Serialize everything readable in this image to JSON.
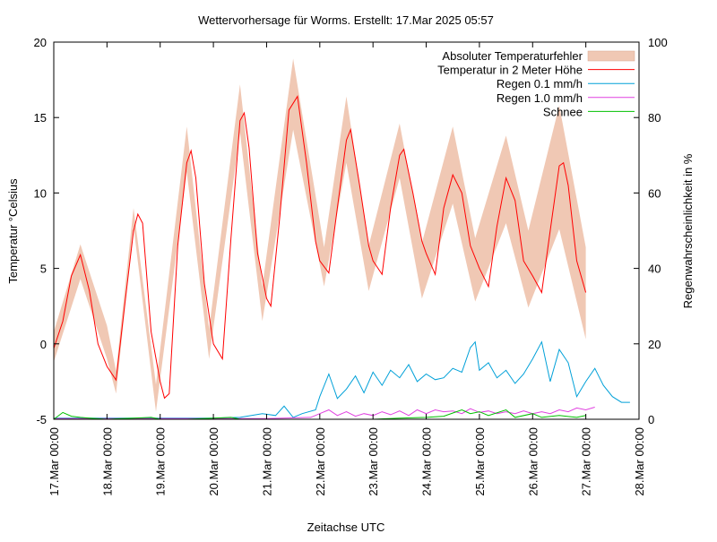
{
  "chart_data": {
    "type": "line",
    "title": "Wettervorhersage für Worms. Erstellt: 17.Mar 2025 05:57",
    "xlabel": "Zeitachse UTC",
    "ylabel": "Temperatur °Celsius",
    "y2label": "Regenwahrscheinlichkeit in %",
    "xlim_days": [
      0,
      11
    ],
    "ylim": [
      -5,
      20
    ],
    "y2lim": [
      0,
      100
    ],
    "y_ticks": [
      "-5",
      "0",
      "5",
      "10",
      "15",
      "20"
    ],
    "y2_ticks": [
      "0",
      "20",
      "40",
      "60",
      "80",
      "100"
    ],
    "x_ticks": [
      "17.Mar 00:00",
      "18.Mar 00:00",
      "19.Mar 00:00",
      "20.Mar 00:00",
      "21.Mar 00:00",
      "22.Mar 00:00",
      "23.Mar 00:00",
      "24.Mar 00:00",
      "25.Mar 00:00",
      "26.Mar 00:00",
      "27.Mar 00:00",
      "28.Mar 00:00"
    ],
    "legend_position": "top-right",
    "grid": false,
    "series": [
      {
        "name": "Absoluter Temperaturfehler",
        "type": "band",
        "axis": "left",
        "color": "#f0c8b4",
        "values": [
          [
            0.0,
            -1.2,
            0.8
          ],
          [
            0.5,
            4.3,
            6.6
          ],
          [
            1.0,
            -1.0,
            1.2
          ],
          [
            1.17,
            -3.3,
            -1.8
          ],
          [
            1.5,
            7.8,
            9.0
          ],
          [
            1.92,
            -4.5,
            -2.7
          ],
          [
            2.5,
            11.4,
            14.4
          ],
          [
            2.92,
            -1.0,
            1.0
          ],
          [
            3.5,
            14.0,
            17.2
          ],
          [
            3.92,
            1.5,
            3.8
          ],
          [
            4.5,
            14.2,
            18.9
          ],
          [
            5.08,
            3.8,
            6.4
          ],
          [
            5.5,
            12.0,
            16.4
          ],
          [
            5.92,
            3.5,
            6.5
          ],
          [
            6.5,
            11.0,
            14.6
          ],
          [
            6.92,
            3.0,
            6.7
          ],
          [
            7.5,
            9.3,
            14.4
          ],
          [
            7.92,
            2.8,
            7.0
          ],
          [
            8.5,
            8.0,
            13.8
          ],
          [
            8.92,
            2.4,
            7.5
          ],
          [
            9.5,
            7.6,
            15.8
          ],
          [
            10.0,
            0.3,
            6.4
          ]
        ]
      },
      {
        "name": "Temperatur in 2 Meter Höhe",
        "type": "line",
        "axis": "left",
        "color": "#ff0000",
        "values": [
          [
            0.0,
            -0.3
          ],
          [
            0.17,
            1.5
          ],
          [
            0.33,
            4.5
          ],
          [
            0.5,
            5.9
          ],
          [
            0.67,
            3.5
          ],
          [
            0.83,
            0.0
          ],
          [
            1.0,
            -1.5
          ],
          [
            1.17,
            -2.4
          ],
          [
            1.33,
            2.5
          ],
          [
            1.5,
            7.5
          ],
          [
            1.58,
            8.6
          ],
          [
            1.67,
            8.0
          ],
          [
            1.83,
            0.8
          ],
          [
            2.0,
            -2.5
          ],
          [
            2.08,
            -3.6
          ],
          [
            2.17,
            -3.3
          ],
          [
            2.33,
            6.5
          ],
          [
            2.5,
            12.0
          ],
          [
            2.58,
            12.8
          ],
          [
            2.67,
            11.0
          ],
          [
            2.83,
            4.0
          ],
          [
            3.0,
            0.0
          ],
          [
            3.17,
            -1.0
          ],
          [
            3.33,
            7.0
          ],
          [
            3.5,
            14.8
          ],
          [
            3.58,
            15.3
          ],
          [
            3.67,
            13.0
          ],
          [
            3.83,
            6.0
          ],
          [
            4.0,
            3.0
          ],
          [
            4.08,
            2.5
          ],
          [
            4.25,
            8.5
          ],
          [
            4.42,
            15.5
          ],
          [
            4.58,
            16.4
          ],
          [
            4.75,
            12.0
          ],
          [
            4.92,
            6.8
          ],
          [
            5.0,
            5.5
          ],
          [
            5.17,
            4.7
          ],
          [
            5.33,
            9.0
          ],
          [
            5.5,
            13.5
          ],
          [
            5.58,
            14.2
          ],
          [
            5.75,
            10.5
          ],
          [
            5.92,
            6.5
          ],
          [
            6.0,
            5.5
          ],
          [
            6.17,
            4.6
          ],
          [
            6.33,
            9.0
          ],
          [
            6.5,
            12.5
          ],
          [
            6.58,
            12.9
          ],
          [
            6.75,
            10.0
          ],
          [
            6.92,
            6.8
          ],
          [
            7.0,
            6.0
          ],
          [
            7.17,
            4.6
          ],
          [
            7.33,
            9.0
          ],
          [
            7.5,
            11.2
          ],
          [
            7.67,
            10.0
          ],
          [
            7.83,
            6.5
          ],
          [
            8.0,
            5.0
          ],
          [
            8.17,
            3.8
          ],
          [
            8.33,
            7.8
          ],
          [
            8.5,
            11.0
          ],
          [
            8.67,
            9.5
          ],
          [
            8.83,
            5.5
          ],
          [
            9.0,
            4.5
          ],
          [
            9.17,
            3.4
          ],
          [
            9.33,
            7.5
          ],
          [
            9.5,
            11.8
          ],
          [
            9.58,
            12.0
          ],
          [
            9.67,
            10.5
          ],
          [
            9.83,
            5.5
          ],
          [
            10.0,
            3.4
          ]
        ]
      },
      {
        "name": "Regen 0.1 mm/h",
        "type": "line",
        "axis": "right",
        "color": "#00a0d8",
        "values": [
          [
            0.0,
            0.3
          ],
          [
            0.5,
            0.3
          ],
          [
            1.0,
            0.3
          ],
          [
            1.5,
            0.3
          ],
          [
            2.0,
            0.3
          ],
          [
            2.5,
            0.3
          ],
          [
            3.0,
            0.3
          ],
          [
            3.5,
            0.5
          ],
          [
            3.92,
            1.5
          ],
          [
            4.17,
            1.0
          ],
          [
            4.33,
            3.5
          ],
          [
            4.5,
            0.5
          ],
          [
            4.67,
            1.5
          ],
          [
            4.92,
            2.5
          ],
          [
            5.0,
            6.0
          ],
          [
            5.17,
            12.0
          ],
          [
            5.33,
            5.5
          ],
          [
            5.5,
            8.0
          ],
          [
            5.67,
            11.5
          ],
          [
            5.83,
            7.0
          ],
          [
            6.0,
            12.5
          ],
          [
            6.17,
            9.0
          ],
          [
            6.33,
            13.0
          ],
          [
            6.5,
            11.0
          ],
          [
            6.67,
            14.5
          ],
          [
            6.83,
            10.0
          ],
          [
            7.0,
            12.0
          ],
          [
            7.17,
            10.5
          ],
          [
            7.33,
            11.0
          ],
          [
            7.5,
            13.5
          ],
          [
            7.67,
            12.5
          ],
          [
            7.83,
            19.0
          ],
          [
            7.92,
            20.5
          ],
          [
            8.0,
            13.0
          ],
          [
            8.17,
            15.0
          ],
          [
            8.33,
            11.0
          ],
          [
            8.5,
            13.0
          ],
          [
            8.67,
            9.5
          ],
          [
            8.83,
            12.0
          ],
          [
            9.0,
            16.0
          ],
          [
            9.17,
            20.5
          ],
          [
            9.33,
            10.0
          ],
          [
            9.5,
            18.5
          ],
          [
            9.67,
            15.0
          ],
          [
            9.83,
            6.0
          ],
          [
            10.0,
            10.0
          ],
          [
            10.17,
            13.5
          ],
          [
            10.33,
            9.0
          ],
          [
            10.5,
            6.0
          ],
          [
            10.67,
            4.5
          ],
          [
            10.83,
            4.5
          ]
        ]
      },
      {
        "name": "Regen 1.0 mm/h",
        "type": "line",
        "axis": "right",
        "color": "#e040e0",
        "values": [
          [
            0.0,
            0.2
          ],
          [
            1.0,
            0.2
          ],
          [
            2.0,
            0.2
          ],
          [
            3.0,
            0.2
          ],
          [
            4.0,
            0.2
          ],
          [
            4.83,
            0.5
          ],
          [
            5.0,
            1.5
          ],
          [
            5.17,
            2.5
          ],
          [
            5.33,
            1.0
          ],
          [
            5.5,
            2.0
          ],
          [
            5.67,
            0.8
          ],
          [
            5.83,
            1.5
          ],
          [
            6.0,
            1.0
          ],
          [
            6.17,
            2.0
          ],
          [
            6.33,
            1.2
          ],
          [
            6.5,
            2.2
          ],
          [
            6.67,
            1.0
          ],
          [
            6.83,
            2.5
          ],
          [
            7.0,
            1.5
          ],
          [
            7.17,
            2.5
          ],
          [
            7.33,
            2.0
          ],
          [
            7.5,
            2.2
          ],
          [
            7.67,
            1.5
          ],
          [
            7.83,
            2.8
          ],
          [
            8.0,
            1.8
          ],
          [
            8.17,
            2.2
          ],
          [
            8.33,
            1.5
          ],
          [
            8.5,
            2.0
          ],
          [
            8.67,
            1.5
          ],
          [
            8.83,
            2.2
          ],
          [
            9.0,
            1.5
          ],
          [
            9.17,
            2.0
          ],
          [
            9.33,
            1.5
          ],
          [
            9.5,
            2.5
          ],
          [
            9.67,
            2.0
          ],
          [
            9.83,
            3.0
          ],
          [
            10.0,
            2.5
          ],
          [
            10.17,
            3.2
          ]
        ]
      },
      {
        "name": "Schnee",
        "type": "line",
        "axis": "right",
        "color": "#00c000",
        "values": [
          [
            0.0,
            0.0
          ],
          [
            0.17,
            1.8
          ],
          [
            0.33,
            0.8
          ],
          [
            0.5,
            0.5
          ],
          [
            0.67,
            0.3
          ],
          [
            1.0,
            0.0
          ],
          [
            1.5,
            0.3
          ],
          [
            1.83,
            0.5
          ],
          [
            2.0,
            0.0
          ],
          [
            2.5,
            0.0
          ],
          [
            3.0,
            0.3
          ],
          [
            3.33,
            0.5
          ],
          [
            3.5,
            0.0
          ],
          [
            4.0,
            0.0
          ],
          [
            4.5,
            0.0
          ],
          [
            5.0,
            0.0
          ],
          [
            5.5,
            0.0
          ],
          [
            6.0,
            0.0
          ],
          [
            6.5,
            0.3
          ],
          [
            7.0,
            0.5
          ],
          [
            7.33,
            0.8
          ],
          [
            7.67,
            2.5
          ],
          [
            7.83,
            1.5
          ],
          [
            8.0,
            2.0
          ],
          [
            8.17,
            1.0
          ],
          [
            8.5,
            2.5
          ],
          [
            8.67,
            0.5
          ],
          [
            9.0,
            1.5
          ],
          [
            9.17,
            0.5
          ],
          [
            9.5,
            1.0
          ],
          [
            9.83,
            0.5
          ],
          [
            10.0,
            1.0
          ]
        ]
      }
    ]
  }
}
